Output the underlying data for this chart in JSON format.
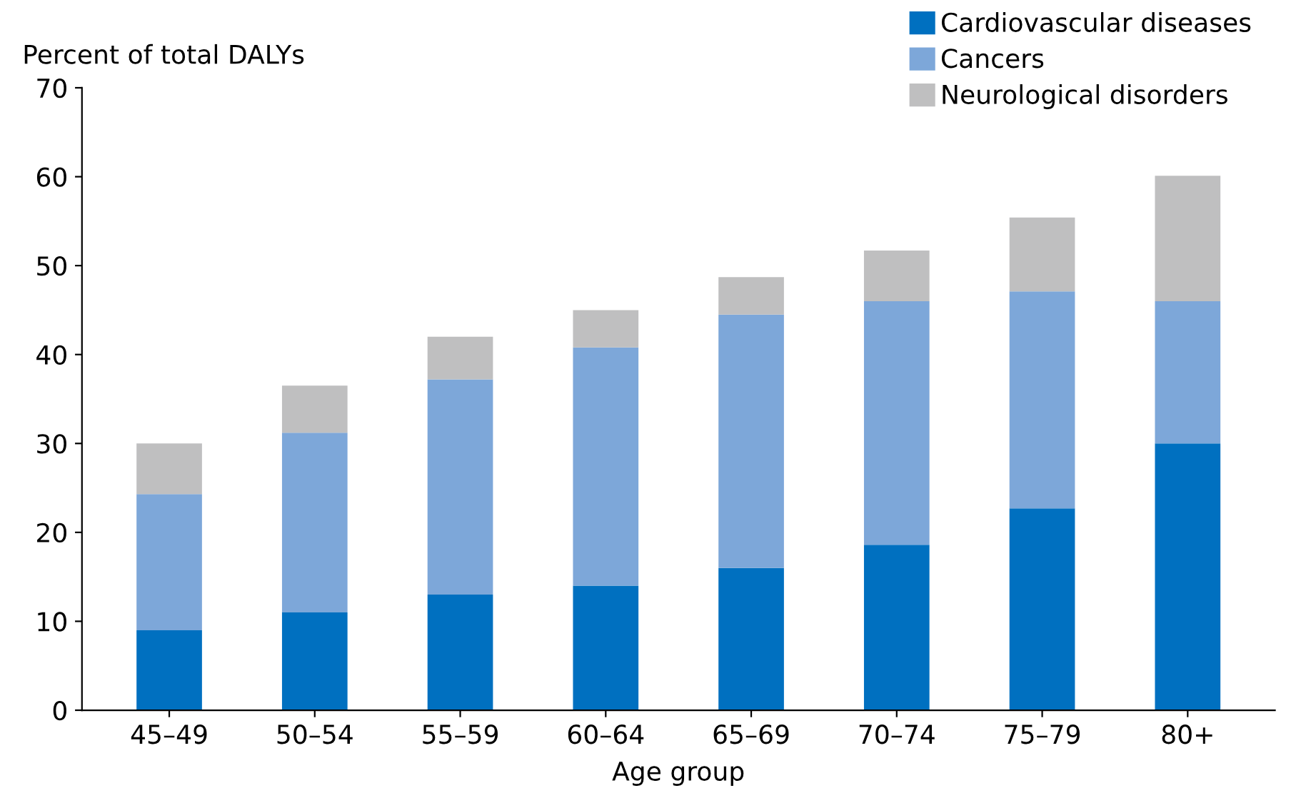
{
  "chart_data": {
    "type": "bar",
    "stacked": true,
    "ylabel": "Percent of total DALYs",
    "xlabel": "Age group",
    "categories": [
      "45–49",
      "50–54",
      "55–59",
      "60–64",
      "65–69",
      "70–74",
      "75–79",
      "80+"
    ],
    "series": [
      {
        "name": "Cardiovascular diseases",
        "color": "#0070c0",
        "values": [
          9.0,
          11.0,
          13.0,
          14.0,
          16.0,
          18.6,
          22.7,
          30.0
        ]
      },
      {
        "name": "Cancers",
        "color": "#7da7d9",
        "values": [
          15.3,
          20.2,
          24.2,
          26.8,
          28.5,
          27.4,
          24.4,
          16.0
        ]
      },
      {
        "name": "Neurological disorders",
        "color": "#bfbfc0",
        "values": [
          5.7,
          5.3,
          4.8,
          4.2,
          4.2,
          5.7,
          8.3,
          14.1
        ]
      }
    ],
    "ylim": [
      0,
      70
    ],
    "yticks": [
      0,
      10,
      20,
      30,
      40,
      50,
      60,
      70
    ],
    "grid": false,
    "legend": "top right"
  }
}
